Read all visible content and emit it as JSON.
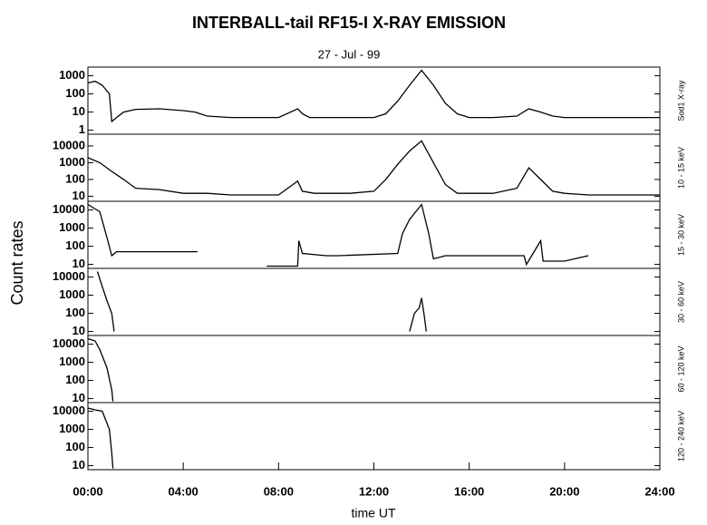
{
  "chart_data": [
    {
      "type": "line",
      "title": "INTERBALL-tail  RF15-I   X-RAY  EMISSION",
      "subtitle": "27 - Jul - 99",
      "ylabel": "Count  rates",
      "channel": "Sod1  X-ray",
      "log": true,
      "xlim": [
        0,
        24
      ],
      "ylim": [
        0.6,
        3000
      ],
      "yticks": [
        1,
        10,
        100,
        1000
      ],
      "series": [
        {
          "color": "#000000",
          "x": [
            0,
            0.3,
            0.6,
            0.9,
            1.0,
            1.2,
            1.5,
            2,
            3,
            4,
            4.5,
            5,
            6,
            7,
            8,
            8.8,
            9,
            9.3,
            10,
            11,
            12,
            12.5,
            13,
            13.5,
            14,
            14.5,
            15,
            15.5,
            16,
            17,
            18,
            18.5,
            19,
            19.5,
            20,
            21,
            22,
            23,
            24
          ],
          "values": [
            400,
            500,
            300,
            100,
            3,
            5,
            10,
            14,
            15,
            12,
            10,
            6,
            5,
            5,
            5,
            15,
            8,
            5,
            5,
            5,
            5,
            8,
            40,
            300,
            2000,
            300,
            30,
            8,
            5,
            5,
            6,
            15,
            10,
            6,
            5,
            5,
            5,
            5,
            5
          ]
        }
      ]
    },
    {
      "type": "line",
      "channel": "10 - 15 keV",
      "log": true,
      "xlim": [
        0,
        24
      ],
      "ylim": [
        5,
        50000
      ],
      "yticks": [
        10,
        100,
        1000,
        10000
      ],
      "series": [
        {
          "color": "#000000",
          "x": [
            0,
            0.5,
            1,
            1.5,
            2,
            3,
            4,
            5,
            6,
            7,
            8,
            8.8,
            9,
            9.5,
            10,
            11,
            12,
            12.5,
            13,
            13.5,
            14,
            14.5,
            15,
            15.5,
            16,
            17,
            18,
            18.5,
            19,
            19.5,
            20,
            21,
            22,
            23,
            24
          ],
          "values": [
            2000,
            1000,
            300,
            100,
            30,
            25,
            15,
            15,
            12,
            12,
            12,
            80,
            20,
            15,
            15,
            15,
            20,
            100,
            800,
            5000,
            20000,
            1000,
            50,
            15,
            15,
            15,
            30,
            500,
            100,
            20,
            15,
            12,
            12,
            12,
            12
          ]
        }
      ]
    },
    {
      "type": "line",
      "channel": "15 - 30 keV",
      "log": true,
      "xlim": [
        0,
        24
      ],
      "ylim": [
        6,
        30000
      ],
      "yticks": [
        10,
        100,
        1000,
        10000
      ],
      "series": [
        {
          "color": "#000000",
          "x": [
            0,
            0.5,
            0.8,
            1,
            1.2,
            4.6,
            4.61,
            7.5,
            7.6,
            8.8,
            8.85,
            9,
            10,
            10.5,
            13,
            13.2,
            13.5,
            14,
            14.3,
            14.5,
            15,
            18.3,
            18.4,
            19,
            19.1,
            20,
            21,
            21.1
          ],
          "values": [
            20000,
            8000,
            300,
            30,
            50,
            50,
            null,
            8,
            8,
            8,
            200,
            40,
            30,
            30,
            40,
            500,
            3000,
            20000,
            500,
            20,
            30,
            30,
            10,
            200,
            15,
            15,
            30,
            null
          ]
        }
      ]
    },
    {
      "type": "line",
      "channel": "30 - 60 keV",
      "log": true,
      "xlim": [
        0,
        24
      ],
      "ylim": [
        6,
        30000
      ],
      "yticks": [
        10,
        100,
        1000,
        10000
      ],
      "series": [
        {
          "color": "#000000",
          "x": [
            0,
            0.4,
            0.6,
            0.8,
            1,
            1.1,
            1.2,
            13.5,
            13.7,
            13.9,
            14,
            14.1,
            14.2
          ],
          "values": [
            null,
            20000,
            3000,
            500,
            100,
            10,
            null,
            10,
            100,
            200,
            700,
            100,
            10
          ]
        }
      ]
    },
    {
      "type": "line",
      "channel": "60 - 120 keV",
      "log": true,
      "xlim": [
        0,
        24
      ],
      "ylim": [
        6,
        30000
      ],
      "yticks": [
        10,
        100,
        1000,
        10000
      ],
      "series": [
        {
          "color": "#000000",
          "x": [
            0,
            0.3,
            0.5,
            0.8,
            1,
            1.05
          ],
          "values": [
            20000,
            15000,
            5000,
            500,
            30,
            7
          ]
        }
      ]
    },
    {
      "type": "line",
      "channel": "120 - 240 keV",
      "log": true,
      "xlim": [
        0,
        24
      ],
      "ylim": [
        6,
        30000
      ],
      "yticks": [
        10,
        100,
        1000,
        10000
      ],
      "xlabel": "time UT",
      "xticks": [
        {
          "value": 0,
          "label": "00:00"
        },
        {
          "value": 4,
          "label": "04:00"
        },
        {
          "value": 8,
          "label": "08:00"
        },
        {
          "value": 12,
          "label": "12:00"
        },
        {
          "value": 16,
          "label": "16:00"
        },
        {
          "value": 20,
          "label": "20:00"
        },
        {
          "value": 24,
          "label": "24:00"
        }
      ],
      "series": [
        {
          "color": "#000000",
          "x": [
            0,
            0.3,
            0.6,
            0.9,
            1,
            1.05
          ],
          "values": [
            15000,
            12000,
            10000,
            1000,
            50,
            7
          ]
        }
      ]
    }
  ]
}
